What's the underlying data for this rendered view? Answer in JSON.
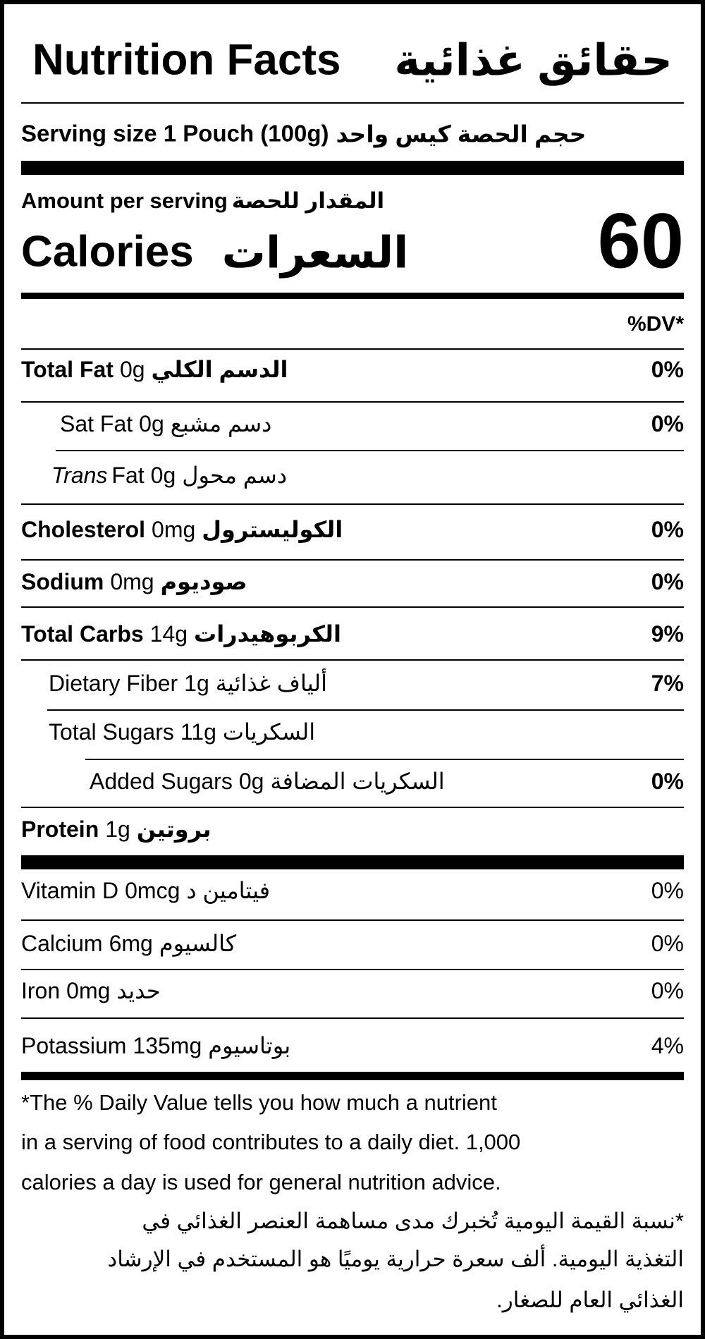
{
  "header": {
    "title": "Nutrition Facts",
    "title_arabic": "حقائق غذائية",
    "serving": "Serving size 1 Pouch (100g)",
    "serving_arabic": "حجم الحصة كيس واحد"
  },
  "calories": {
    "amount_label": "Amount per serving",
    "amount_label_arabic": "المقدار للحصة",
    "label": "Calories",
    "label_arabic": "السعرات",
    "value": 60
  },
  "dv_header": "%DV*",
  "rows": [
    {
      "label": "Total Fat",
      "amount": "0g",
      "arabic": "الدسم الكلي",
      "dv": "0%"
    },
    {
      "label": "Sat Fat",
      "amount": "0g",
      "arabic": "دسم مشبع",
      "dv": "0%"
    },
    {
      "label_italic": "Trans",
      "label": "Fat",
      "amount": "0g",
      "arabic": "دسم محول"
    },
    {
      "label": "Cholesterol",
      "amount": "0mg",
      "arabic": "الكوليسترول",
      "dv": "0%"
    },
    {
      "label": "Sodium",
      "amount": "0mg",
      "arabic": "صوديوم",
      "dv": "0%"
    },
    {
      "label": "Total Carbs",
      "amount": "14g",
      "arabic": "الكربوهيدرات",
      "dv": "9%"
    },
    {
      "label": "Dietary Fiber",
      "amount": "1g",
      "arabic": "ألياف غذائية",
      "dv": "7%"
    },
    {
      "label": "Total Sugars",
      "amount": "11g",
      "arabic": "السكريات"
    },
    {
      "label": "Added Sugars",
      "amount": "0g",
      "arabic": "السكريات المضافة",
      "dv": "0%"
    },
    {
      "label": "Protein",
      "amount": "1g",
      "arabic": "بروتين"
    }
  ],
  "vitamins": [
    {
      "label": "Vitamin D",
      "amount": "0mcg",
      "arabic": "فيتامين د",
      "dv": "0%"
    },
    {
      "label": "Calcium",
      "amount": "6mg",
      "arabic": "كالسيوم",
      "dv": "0%"
    },
    {
      "label": "Iron",
      "amount": "0mg",
      "arabic": "حديد",
      "dv": "0%"
    },
    {
      "label": "Potassium",
      "amount": "135mg",
      "arabic": "بوتاسيوم",
      "dv": "4%"
    }
  ],
  "footnote": {
    "english": [
      "*The % Daily Value tells you how much a nutrient",
      "in a serving of food contributes to a daily diet. 1,000",
      "calories a day is used for general nutrition advice."
    ],
    "arabic": [
      "*نسبة القيمة اليومية تُخبرك مدى مساهمة العنصر الغذائي في",
      "التغذية اليومية. ألف سعرة حرارية يوميًا هو المستخدم في الإرشاد",
      "الغذائي العام للصغار."
    ]
  }
}
